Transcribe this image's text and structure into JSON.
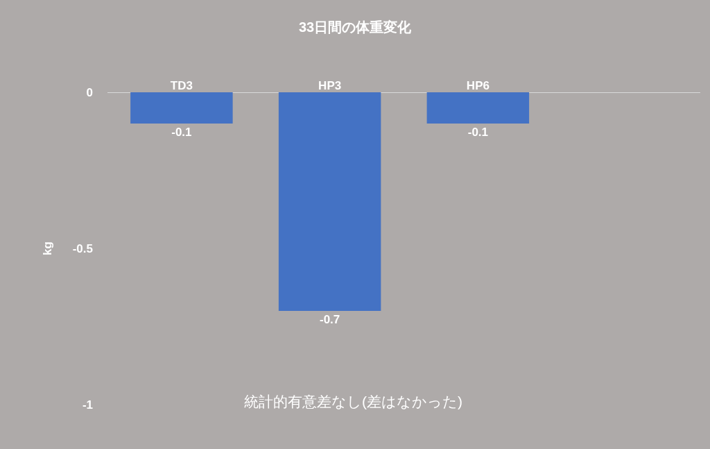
{
  "chart_data": {
    "type": "bar",
    "title": "33日間の体重変化",
    "ylabel": "kg",
    "categories": [
      "TD3",
      "HP3",
      "HP6",
      null
    ],
    "values": [
      -0.1,
      -0.7,
      -0.1,
      null
    ],
    "color": "#4472c4",
    "ylim": [
      -1,
      0
    ],
    "yticks": [
      -1,
      -0.5,
      0
    ],
    "grid": false,
    "data_labels": true,
    "annotations": [
      "統計的有意差なし(差はなかった)"
    ]
  }
}
